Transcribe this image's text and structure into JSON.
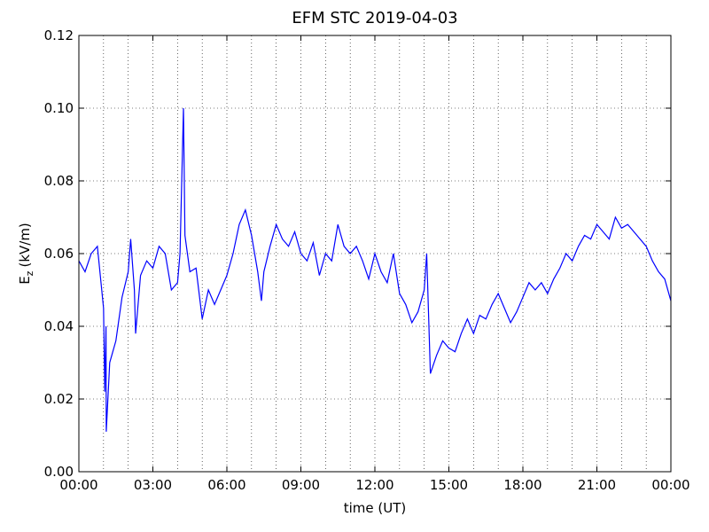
{
  "chart_data": {
    "type": "line",
    "title": "EFM STC    2019-04-03",
    "xlabel": "time (UT)",
    "ylabel": {
      "main": "E",
      "subscript": "z",
      "unit": "(kV/m)"
    },
    "x": [
      0,
      0.25,
      0.5,
      0.75,
      1.0,
      1.05,
      1.1,
      1.11,
      1.25,
      1.5,
      1.75,
      2.0,
      2.1,
      2.25,
      2.3,
      2.5,
      2.75,
      3.0,
      3.25,
      3.5,
      3.75,
      4.0,
      4.1,
      4.24,
      4.3,
      4.5,
      4.75,
      5.0,
      5.25,
      5.5,
      5.75,
      6.0,
      6.25,
      6.5,
      6.75,
      7.0,
      7.25,
      7.4,
      7.5,
      7.75,
      8.0,
      8.25,
      8.5,
      8.75,
      9.0,
      9.25,
      9.5,
      9.75,
      10.0,
      10.25,
      10.5,
      10.75,
      11.0,
      11.25,
      11.5,
      11.75,
      12.0,
      12.25,
      12.5,
      12.75,
      13.0,
      13.25,
      13.5,
      13.75,
      14.0,
      14.1,
      14.25,
      14.5,
      14.75,
      15.0,
      15.25,
      15.5,
      15.75,
      16.0,
      16.25,
      16.5,
      16.75,
      17.0,
      17.25,
      17.5,
      17.75,
      18.0,
      18.25,
      18.5,
      18.75,
      19.0,
      19.25,
      19.5,
      19.75,
      20.0,
      20.25,
      20.5,
      20.75,
      21.0,
      21.25,
      21.5,
      21.75,
      22.0,
      22.25,
      22.5,
      22.75,
      23.0,
      23.25,
      23.5,
      23.75,
      24.0
    ],
    "series": [
      {
        "name": "Ez",
        "color": "#0000ff",
        "values": [
          0.058,
          0.055,
          0.06,
          0.062,
          0.045,
          0.022,
          0.04,
          0.011,
          0.03,
          0.036,
          0.048,
          0.055,
          0.064,
          0.05,
          0.038,
          0.054,
          0.058,
          0.056,
          0.062,
          0.06,
          0.05,
          0.052,
          0.06,
          0.1,
          0.065,
          0.055,
          0.056,
          0.042,
          0.05,
          0.046,
          0.05,
          0.054,
          0.06,
          0.068,
          0.072,
          0.065,
          0.055,
          0.047,
          0.055,
          0.062,
          0.068,
          0.064,
          0.062,
          0.066,
          0.06,
          0.058,
          0.063,
          0.054,
          0.06,
          0.058,
          0.068,
          0.062,
          0.06,
          0.062,
          0.058,
          0.053,
          0.06,
          0.055,
          0.052,
          0.06,
          0.049,
          0.046,
          0.041,
          0.044,
          0.05,
          0.06,
          0.027,
          0.032,
          0.036,
          0.034,
          0.033,
          0.038,
          0.042,
          0.038,
          0.043,
          0.042,
          0.046,
          0.049,
          0.045,
          0.041,
          0.044,
          0.048,
          0.052,
          0.05,
          0.052,
          0.049,
          0.053,
          0.056,
          0.06,
          0.058,
          0.062,
          0.065,
          0.064,
          0.068,
          0.066,
          0.064,
          0.07,
          0.067,
          0.068,
          0.066,
          0.064,
          0.062,
          0.058,
          0.055,
          0.053,
          0.047
        ]
      }
    ],
    "xlim": [
      0,
      24
    ],
    "xticks": [
      {
        "value": 0,
        "label": "00:00"
      },
      {
        "value": 3,
        "label": "03:00"
      },
      {
        "value": 6,
        "label": "06:00"
      },
      {
        "value": 9,
        "label": "09:00"
      },
      {
        "value": 12,
        "label": "12:00"
      },
      {
        "value": 15,
        "label": "15:00"
      },
      {
        "value": 18,
        "label": "18:00"
      },
      {
        "value": 21,
        "label": "21:00"
      },
      {
        "value": 24,
        "label": "00:00"
      }
    ],
    "xminorticks": [
      1,
      2,
      4,
      5,
      7,
      8,
      10,
      11,
      13,
      14,
      16,
      17,
      19,
      20,
      22,
      23
    ],
    "ylim": [
      0,
      0.12
    ],
    "yticks": [
      {
        "value": 0,
        "label": "0.00"
      },
      {
        "value": 0.02,
        "label": "0.02"
      },
      {
        "value": 0.04,
        "label": "0.04"
      },
      {
        "value": 0.06,
        "label": "0.06"
      },
      {
        "value": 0.08,
        "label": "0.08"
      },
      {
        "value": 0.1,
        "label": "0.10"
      },
      {
        "value": 0.12,
        "label": "0.12"
      }
    ],
    "grid": true
  }
}
